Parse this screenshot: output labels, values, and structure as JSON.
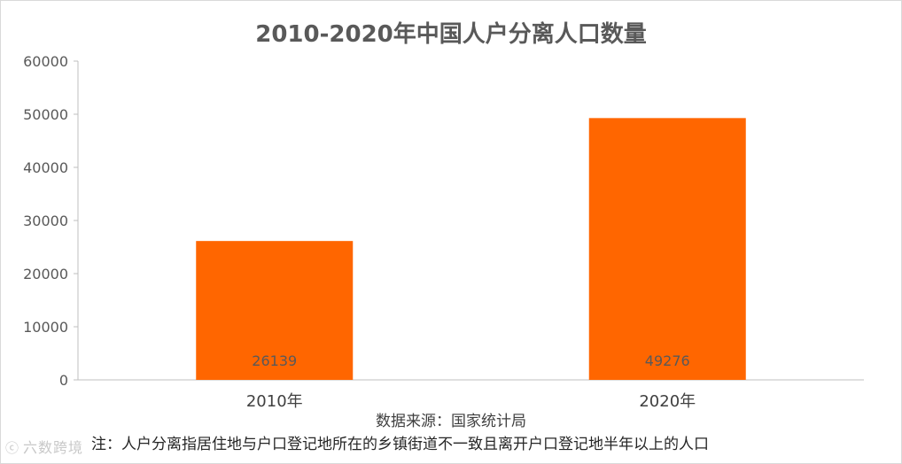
{
  "chart_data": {
    "type": "bar",
    "title": "2010-2020年中国人户分离人口数量",
    "categories": [
      "2010年",
      "2020年"
    ],
    "values": [
      26139,
      49276
    ],
    "data_labels": [
      "26139",
      "49276"
    ],
    "ylim": [
      0,
      60000
    ],
    "yticks": [
      "0",
      "10000",
      "20000",
      "30000",
      "40000",
      "50000",
      "60000"
    ],
    "xlabel": "",
    "ylabel": "",
    "grid": false,
    "legend": "none",
    "bar_color": "#FF6600",
    "label_color": "#595959"
  },
  "source": "数据来源：国家统计局",
  "note": "注：人户分离指居住地与户口登记地所在的乡镇街道不一致且离开户口登记地半年以上的人口",
  "watermark": {
    "text": "六数跨境",
    "icon": "six-logo-icon"
  }
}
